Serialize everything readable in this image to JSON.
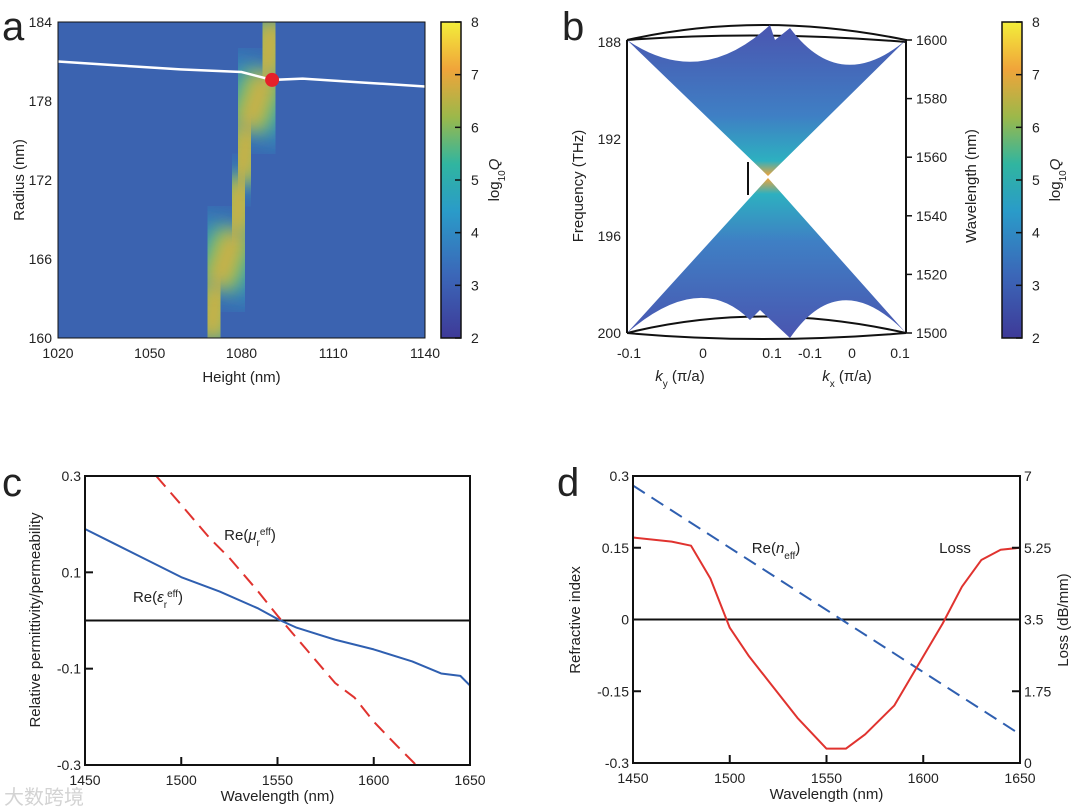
{
  "panel_labels": [
    "a",
    "b",
    "c",
    "d"
  ],
  "watermark": "大数跨境",
  "chart_data": [
    {
      "panel": "a",
      "type": "heatmap",
      "xlabel": "Height (nm)",
      "ylabel": "Radius (nm)",
      "xlim": [
        1020,
        1140
      ],
      "ylim": [
        160,
        184
      ],
      "xticks": [
        "1020",
        "1050",
        "1080",
        "1110",
        "1140"
      ],
      "yticks": [
        "160",
        "166",
        "172",
        "178",
        "184"
      ],
      "colorbar": {
        "label": "log10Q",
        "label_main": "log",
        "label_sub": "10",
        "label_var": "Q",
        "range": [
          2,
          8
        ],
        "ticks": [
          "2",
          "3",
          "4",
          "5",
          "6",
          "7",
          "8"
        ]
      },
      "high_q_ridge": [
        [
          1070,
          160
        ],
        [
          1072,
          164
        ],
        [
          1078,
          168
        ],
        [
          1080,
          172
        ],
        [
          1082,
          176
        ],
        [
          1088,
          180
        ],
        [
          1090,
          184
        ]
      ],
      "line": {
        "x": [
          1020,
          1040,
          1060,
          1080,
          1090,
          1100,
          1120,
          1140
        ],
        "y": [
          181.0,
          180.7,
          180.4,
          180.2,
          179.6,
          179.7,
          179.4,
          179.1
        ]
      },
      "marker": {
        "x": 1090,
        "y": 179.6,
        "color": "#e5202a"
      }
    },
    {
      "panel": "b",
      "type": "surface",
      "ylabel_left": "Frequency (THz)",
      "ylabel_right": "Wavelength (nm)",
      "yticks_left": [
        "188",
        "192",
        "196",
        "200"
      ],
      "yticks_right": [
        "1600",
        "1580",
        "1560",
        "1540",
        "1520",
        "1500"
      ],
      "xlabel_ky": "(π/a)",
      "ky_var": "k",
      "ky_sub": "y",
      "xlabel_kx": "(π/a)",
      "kx_var": "k",
      "kx_sub": "x",
      "xticks_ky": [
        "-0.1",
        "0",
        "0.1"
      ],
      "xticks_kx": [
        "-0.1",
        "0",
        "0.1"
      ],
      "colorbar": {
        "label_main": "log",
        "label_sub": "10",
        "label_var": "Q",
        "range": [
          2,
          8
        ],
        "ticks": [
          "2",
          "3",
          "4",
          "5",
          "6",
          "7",
          "8"
        ]
      }
    },
    {
      "panel": "c",
      "type": "line",
      "xlabel": "Wavelength (nm)",
      "ylabel": "Relative permittivity/permeability",
      "xlim": [
        1450,
        1650
      ],
      "ylim": [
        -0.3,
        0.3
      ],
      "xticks": [
        "1450",
        "1500",
        "1550",
        "1600",
        "1650"
      ],
      "yticks": [
        "0.3",
        "0.1",
        "-0.1",
        "-0.3"
      ],
      "series": [
        {
          "name": "Re(εr eff)",
          "label_main": "Re(",
          "label_var": "ε",
          "label_sub": "r",
          "label_sup": "eff",
          "color": "#2f5fb0",
          "dash": false,
          "x": [
            1450,
            1465,
            1480,
            1500,
            1520,
            1540,
            1550,
            1560,
            1580,
            1600,
            1620,
            1635,
            1645,
            1650
          ],
          "y": [
            0.19,
            0.16,
            0.13,
            0.09,
            0.06,
            0.025,
            0.003,
            -0.015,
            -0.04,
            -0.06,
            -0.085,
            -0.11,
            -0.115,
            -0.135
          ]
        },
        {
          "name": "Re(μr eff)",
          "label_main": "Re(",
          "label_var": "μ",
          "label_sub": "r",
          "label_sup": "eff",
          "color": "#e0332f",
          "dash": true,
          "x": [
            1487,
            1500,
            1515,
            1525,
            1540,
            1550,
            1565,
            1580,
            1590,
            1600,
            1612,
            1622
          ],
          "y": [
            0.3,
            0.24,
            0.17,
            0.13,
            0.06,
            0.01,
            -0.06,
            -0.13,
            -0.16,
            -0.21,
            -0.26,
            -0.3
          ]
        }
      ]
    },
    {
      "panel": "d",
      "type": "line",
      "xlabel": "Wavelength (nm)",
      "ylabel_left": "Refractive index",
      "ylabel_right": "Loss (dB/mm)",
      "xlim": [
        1450,
        1650
      ],
      "ylim": [
        -0.3,
        0.3
      ],
      "ylim_right": [
        0,
        7
      ],
      "xticks": [
        "1450",
        "1500",
        "1550",
        "1600",
        "1650"
      ],
      "yticks": [
        "0.3",
        "0.15",
        "0",
        "-0.15",
        "-0.3"
      ],
      "yticks_right": [
        "7",
        "5.25",
        "3.5",
        "1.75",
        "0"
      ],
      "series": [
        {
          "name": "Re(neff)",
          "label_main": "Re(",
          "label_var": "n",
          "label_sub": "eff",
          "color": "#2f5fb0",
          "dash": true,
          "axis": "left",
          "x": [
            1450,
            1650
          ],
          "y": [
            0.28,
            -0.24
          ]
        },
        {
          "name": "Loss",
          "label_main": "Loss",
          "color": "#e0332f",
          "dash": false,
          "axis": "right",
          "x": [
            1450,
            1470,
            1480,
            1490,
            1500,
            1510,
            1520,
            1535,
            1550,
            1560,
            1570,
            1585,
            1600,
            1610,
            1620,
            1630,
            1640,
            1650
          ],
          "y": [
            5.5,
            5.4,
            5.3,
            4.5,
            3.3,
            2.6,
            2.0,
            1.1,
            0.35,
            0.35,
            0.7,
            1.4,
            2.6,
            3.4,
            4.3,
            4.95,
            5.2,
            5.25
          ]
        }
      ]
    }
  ]
}
